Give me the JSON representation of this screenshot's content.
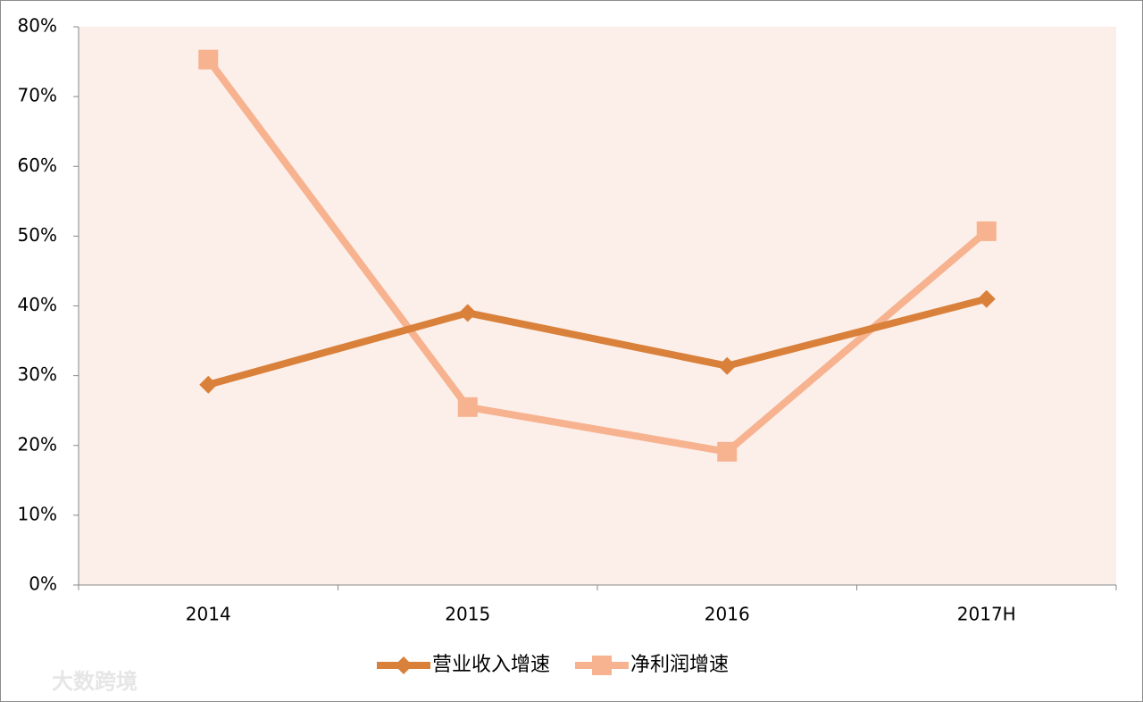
{
  "chart_data": {
    "type": "line",
    "categories": [
      "2014",
      "2015",
      "2016",
      "2017H"
    ],
    "series": [
      {
        "name": "营业收入增速",
        "color": "#d9803b",
        "marker": "diamond",
        "values": [
          28.7,
          39.0,
          31.4,
          41.0
        ]
      },
      {
        "name": "净利润增速",
        "color": "#f7b28f",
        "marker": "square",
        "values": [
          75.3,
          25.5,
          19.1,
          50.7
        ]
      }
    ],
    "ylim": [
      0,
      80
    ],
    "yticks": [
      {
        "value": 0,
        "label": "0%"
      },
      {
        "value": 10,
        "label": "10%"
      },
      {
        "value": 20,
        "label": "20%"
      },
      {
        "value": 30,
        "label": "30%"
      },
      {
        "value": 40,
        "label": "40%"
      },
      {
        "value": 50,
        "label": "50%"
      },
      {
        "value": 60,
        "label": "60%"
      },
      {
        "value": 70,
        "label": "70%"
      },
      {
        "value": 80,
        "label": "80%"
      }
    ],
    "plot_background": "#fcefe9",
    "legend": "bottom",
    "watermark": "大数跨境"
  }
}
